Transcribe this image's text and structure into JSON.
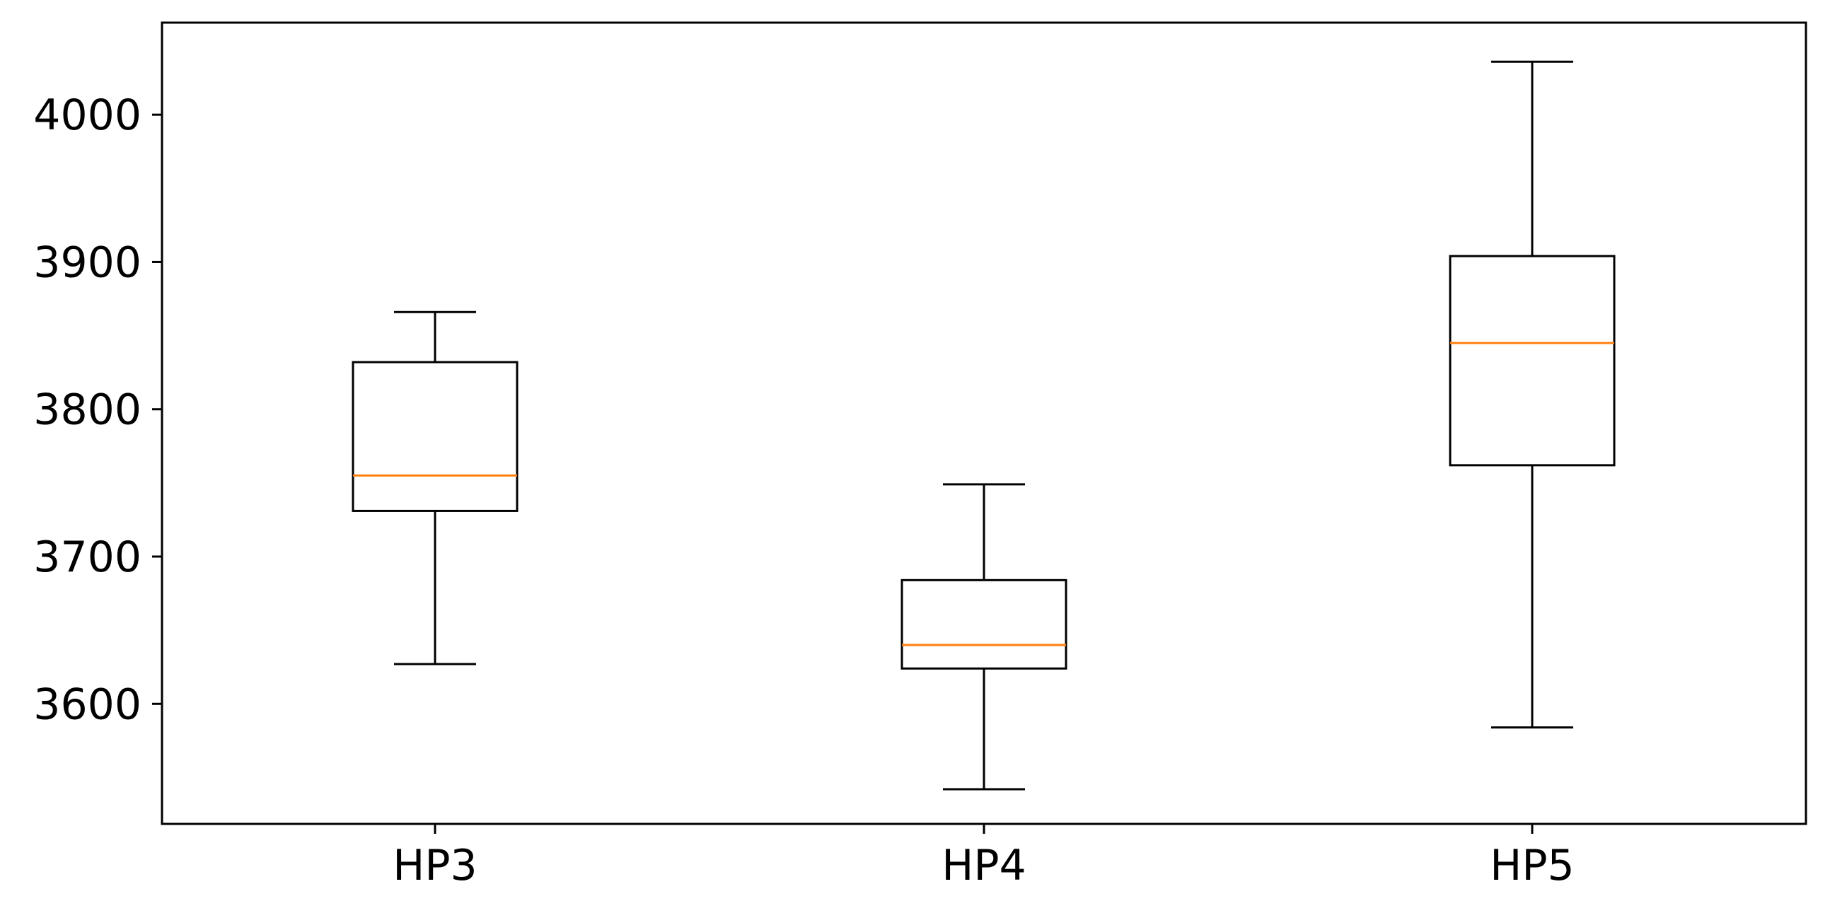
{
  "chart_data": {
    "type": "boxplot",
    "title": "",
    "xlabel": "",
    "ylabel": "",
    "categories": [
      "HP3",
      "HP4",
      "HP5"
    ],
    "boxes": [
      {
        "label": "HP3",
        "whisker_low": 3627,
        "q1": 3731,
        "median": 3755,
        "q3": 3832,
        "whisker_high": 3866
      },
      {
        "label": "HP4",
        "whisker_low": 3542,
        "q1": 3624,
        "median": 3640,
        "q3": 3684,
        "whisker_high": 3749
      },
      {
        "label": "HP5",
        "whisker_low": 3584,
        "q1": 3762,
        "median": 3845,
        "q3": 3904,
        "whisker_high": 4036
      }
    ],
    "yticks": [
      3600,
      3700,
      3800,
      3900,
      4000
    ],
    "ytick_labels": [
      "3600",
      "3700",
      "3800",
      "3900",
      "4000"
    ],
    "ylim": [
      3518.5,
      4062.5
    ],
    "grid": false,
    "legend": "none",
    "colors": {
      "box": "#000000",
      "median": "#ff7f0e",
      "axes": "#000000",
      "background": "#ffffff"
    }
  }
}
